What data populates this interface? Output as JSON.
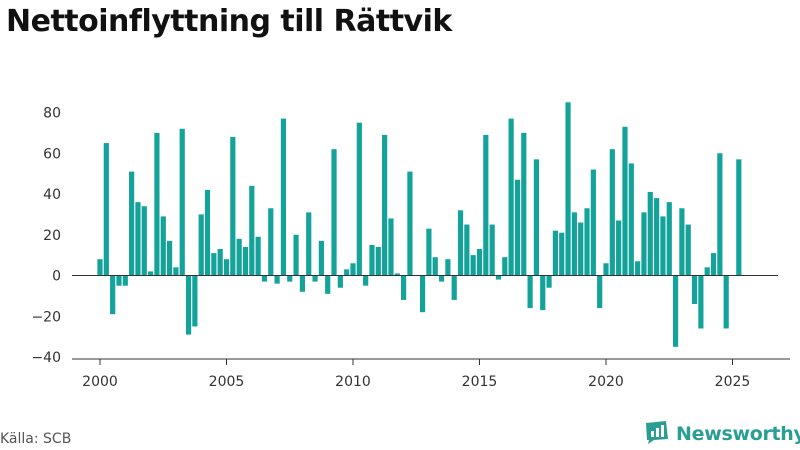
{
  "title": "Nettoinflyttning till Rättvik",
  "source": "Källa: SCB",
  "brand": {
    "name": "Newsworthy",
    "icon": "newsworthy-logo-icon",
    "color": "#2a9e94"
  },
  "chart_data": {
    "type": "bar",
    "title": "Nettoinflyttning till Rättvik",
    "xlabel": "",
    "ylabel": "",
    "bar_color": "#14a39a",
    "grid": false,
    "ylim": [
      -40,
      90
    ],
    "xlim": [
      1999.0,
      2026.8
    ],
    "y_ticks": [
      -40,
      -20,
      0,
      20,
      40,
      60,
      80
    ],
    "y_tick_labels": [
      "−40",
      "−20",
      "0",
      "20",
      "40",
      "60",
      "80"
    ],
    "x_ticks": [
      2000,
      2005,
      2010,
      2015,
      2020,
      2025
    ],
    "x_tick_labels": [
      "2000",
      "2005",
      "2010",
      "2015",
      "2020",
      "2025"
    ],
    "start_year": 2000,
    "start_quarter": 1,
    "frequency": "quarterly",
    "values": [
      8,
      65,
      -19,
      -5,
      -5,
      51,
      36,
      34,
      2,
      70,
      29,
      17,
      4,
      72,
      -29,
      -25,
      30,
      42,
      11,
      13,
      8,
      68,
      18,
      14,
      44,
      19,
      -3,
      33,
      -4,
      77,
      -3,
      20,
      -8,
      31,
      -3,
      17,
      -9,
      62,
      -6,
      3,
      6,
      75,
      -5,
      15,
      14,
      69,
      28,
      1,
      -12,
      51,
      0,
      -18,
      23,
      9,
      -3,
      8,
      -12,
      32,
      25,
      10,
      13,
      69,
      25,
      -2,
      9,
      77,
      47,
      70,
      -16,
      57,
      -17,
      -6,
      22,
      21,
      85,
      31,
      26,
      33,
      52,
      -16,
      6,
      62,
      27,
      73,
      55,
      7,
      31,
      41,
      38,
      29,
      36,
      -35,
      33,
      25,
      -14,
      -26,
      4,
      11,
      60,
      -26,
      0,
      57
    ]
  }
}
